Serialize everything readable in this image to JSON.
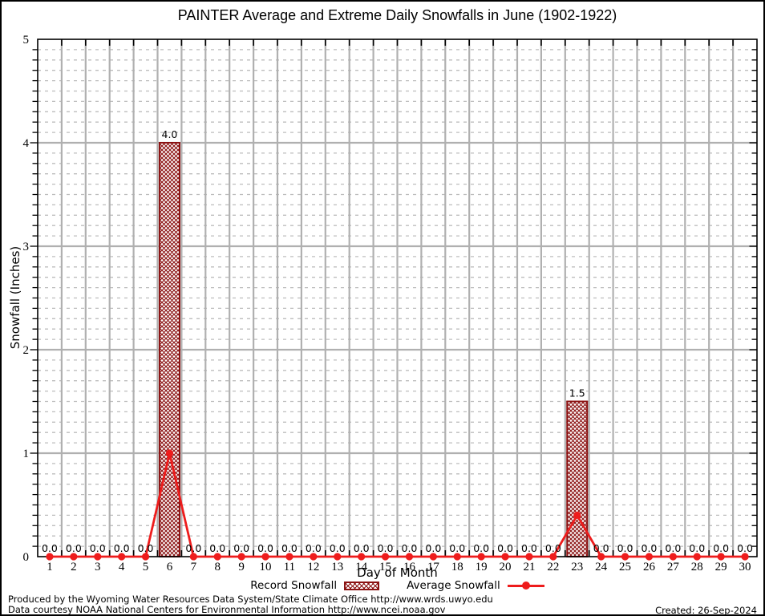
{
  "chart_data": {
    "type": "bar",
    "title": "PAINTER Average and Extreme Daily Snowfalls in June (1902-1922)",
    "xlabel": "Day of Month",
    "ylabel": "Snowfall (Inches)",
    "x": [
      1,
      2,
      3,
      4,
      5,
      6,
      7,
      8,
      9,
      10,
      11,
      12,
      13,
      14,
      15,
      16,
      17,
      18,
      19,
      20,
      21,
      22,
      23,
      24,
      25,
      26,
      27,
      28,
      29,
      30
    ],
    "series": [
      {
        "name": "Record Snowfall",
        "type": "bar",
        "values": [
          0.0,
          0.0,
          0.0,
          0.0,
          0.0,
          4.0,
          0.0,
          0.0,
          0.0,
          0.0,
          0.0,
          0.0,
          0.0,
          0.0,
          0.0,
          0.0,
          0.0,
          0.0,
          0.0,
          0.0,
          0.0,
          0.0,
          1.5,
          0.0,
          0.0,
          0.0,
          0.0,
          0.0,
          0.0,
          0.0
        ]
      },
      {
        "name": "Average Snowfall",
        "type": "line",
        "values": [
          0.0,
          0.0,
          0.0,
          0.0,
          0.0,
          1.0,
          0.0,
          0.0,
          0.0,
          0.0,
          0.0,
          0.0,
          0.0,
          0.0,
          0.0,
          0.0,
          0.0,
          0.0,
          0.0,
          0.0,
          0.0,
          0.0,
          0.4,
          0.0,
          0.0,
          0.0,
          0.0,
          0.0,
          0.0,
          0.0
        ]
      }
    ],
    "bar_value_labels": [
      "0.0",
      "0.0",
      "0.0",
      "0.0",
      "0.0",
      "4.0",
      "0.0",
      "0.0",
      "0.0",
      "0.0",
      "0.0",
      "0.0",
      "0.0",
      "0.0",
      "0.0",
      "0.0",
      "0.0",
      "0.0",
      "0.0",
      "0.0",
      "0.0",
      "0.0",
      "1.5",
      "0.0",
      "0.0",
      "0.0",
      "0.0",
      "0.0",
      "0.0",
      "0.0"
    ],
    "ylim": [
      0,
      5
    ],
    "xlim": [
      0.5,
      30.5
    ],
    "y_ticks": [
      0,
      1,
      2,
      3,
      4,
      5
    ],
    "y_minor_step": 0.1,
    "grid": "major solid gray at integers and day boundaries, minor dashed gray every 0.1",
    "legend_position": "bottom"
  },
  "legend": {
    "record_label": "Record Snowfall",
    "average_label": "Average Snowfall"
  },
  "footer": {
    "line1": "Produced by the Wyoming Water Resources Data System/State Climate Office http://www.wrds.uwyo.edu",
    "line2": "Data courtesy NOAA National Centers for Environmental Information http://www.ncei.noaa.gov",
    "created": "Created: 26-Sep-2024"
  },
  "colors": {
    "bar": "#8b1212",
    "line": "#ee1c1c",
    "grid_major": "#b0b0b0",
    "grid_minor": "#bdbdbd",
    "axis": "#000000",
    "background": "#ffffff"
  }
}
